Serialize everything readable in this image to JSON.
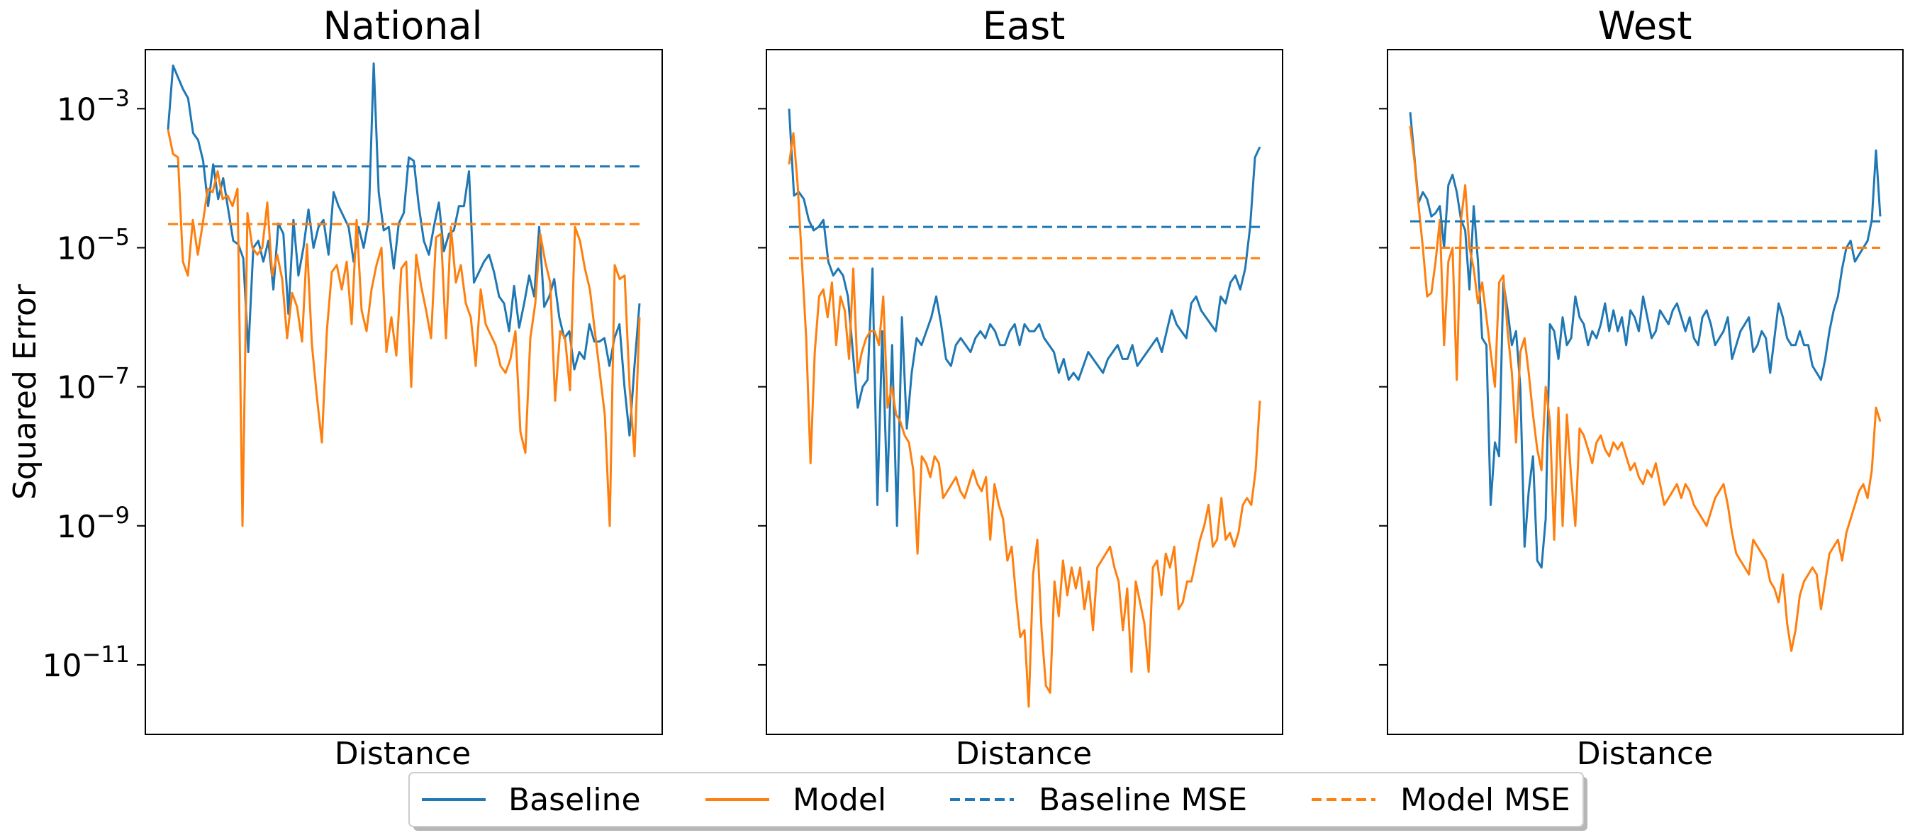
{
  "figure": {
    "ylabel": "Squared Error",
    "legend": {
      "placement": "bottom-center",
      "entries": [
        {
          "label": "Baseline",
          "color": "#1f77b4",
          "style": "solid"
        },
        {
          "label": "Model",
          "color": "#ff7f0e",
          "style": "solid"
        },
        {
          "label": "Baseline MSE",
          "color": "#1f77b4",
          "style": "dashed"
        },
        {
          "label": "Model MSE",
          "color": "#ff7f0e",
          "style": "dashed"
        }
      ]
    }
  },
  "chart_data": [
    {
      "type": "line",
      "title": "National",
      "xlabel": "Distance",
      "ylabel": "Squared Error",
      "yscale": "log",
      "ylim_exp": [
        -12,
        -2.15
      ],
      "yticks": [
        {
          "base": "10",
          "exp": "-3"
        },
        {
          "base": "10",
          "exp": "-5"
        },
        {
          "base": "10",
          "exp": "-7"
        },
        {
          "base": "10",
          "exp": "-9"
        },
        {
          "base": "10",
          "exp": "-11"
        }
      ],
      "x_ticks_shown": false,
      "series": [
        {
          "name": "Baseline",
          "color": "#1f77b4",
          "log10_values": [
            -3.3,
            -2.38,
            -2.55,
            -2.72,
            -2.85,
            -3.35,
            -3.45,
            -3.75,
            -4.4,
            -3.8,
            -4.3,
            -4.0,
            -4.45,
            -4.9,
            -4.95,
            -5.15,
            -6.5,
            -5.0,
            -4.9,
            -5.2,
            -4.9,
            -5.6,
            -4.65,
            -4.8,
            -5.95,
            -4.6,
            -5.4,
            -5.0,
            -4.45,
            -5.0,
            -4.7,
            -4.6,
            -5.1,
            -4.2,
            -4.4,
            -4.55,
            -4.7,
            -5.2,
            -4.7,
            -5.0,
            -4.6,
            -2.35,
            -4.2,
            -4.75,
            -4.7,
            -5.3,
            -4.65,
            -4.5,
            -3.7,
            -3.75,
            -4.4,
            -4.9,
            -5.1,
            -4.7,
            -4.35,
            -5.05,
            -4.8,
            -4.75,
            -4.4,
            -4.4,
            -3.9,
            -5.5,
            -5.35,
            -5.2,
            -5.1,
            -5.35,
            -5.7,
            -5.8,
            -6.2,
            -5.55,
            -6.15,
            -5.8,
            -5.4,
            -5.7,
            -4.7,
            -5.85,
            -5.7,
            -5.45,
            -6.0,
            -6.3,
            -6.2,
            -6.75,
            -6.5,
            -6.6,
            -6.1,
            -6.35,
            -6.35,
            -6.3,
            -6.7,
            -6.3,
            -6.1,
            -7.0,
            -7.7,
            -6.7,
            -5.8
          ]
        },
        {
          "name": "Model",
          "color": "#ff7f0e",
          "log10_values": [
            -3.3,
            -3.65,
            -3.7,
            -5.2,
            -5.4,
            -4.6,
            -5.1,
            -4.65,
            -4.15,
            -4.2,
            -3.9,
            -4.3,
            -4.25,
            -4.4,
            -4.15,
            -9.0,
            -4.5,
            -5.0,
            -5.1,
            -5.0,
            -4.35,
            -5.4,
            -5.1,
            -5.45,
            -6.3,
            -5.65,
            -5.85,
            -6.35,
            -4.95,
            -6.4,
            -7.15,
            -7.8,
            -6.2,
            -5.35,
            -5.25,
            -5.6,
            -5.2,
            -6.1,
            -4.6,
            -5.9,
            -6.2,
            -5.6,
            -5.25,
            -5.0,
            -6.5,
            -6.0,
            -6.55,
            -5.3,
            -5.2,
            -7.0,
            -5.1,
            -5.55,
            -5.9,
            -6.3,
            -4.85,
            -4.8,
            -6.3,
            -4.7,
            -5.5,
            -5.25,
            -5.8,
            -6.0,
            -6.7,
            -5.6,
            -6.1,
            -6.25,
            -6.4,
            -6.7,
            -6.8,
            -6.6,
            -6.2,
            -7.65,
            -7.95,
            -6.3,
            -5.8,
            -4.8,
            -5.2,
            -5.5,
            -7.2,
            -6.2,
            -6.3,
            -7.05,
            -4.7,
            -4.9,
            -5.3,
            -5.6,
            -6.2,
            -6.8,
            -7.4,
            -9.0,
            -5.25,
            -5.45,
            -5.4,
            -7.0,
            -8.0,
            -6.0
          ]
        },
        {
          "name": "Baseline MSE",
          "color": "#1f77b4",
          "dashed": true,
          "log10_values": [
            -3.83
          ]
        },
        {
          "name": "Model MSE",
          "color": "#ff7f0e",
          "dashed": true,
          "log10_values": [
            -4.66
          ]
        }
      ]
    },
    {
      "type": "line",
      "title": "East",
      "xlabel": "Distance",
      "yscale": "log",
      "ylim_exp": [
        -12,
        -2.15
      ],
      "yticks_labeled": false,
      "x_ticks_shown": false,
      "series": [
        {
          "name": "Baseline",
          "color": "#1f77b4",
          "log10_values": [
            -3.0,
            -4.25,
            -4.2,
            -4.3,
            -4.6,
            -4.75,
            -4.7,
            -4.6,
            -5.2,
            -5.4,
            -5.3,
            -5.4,
            -5.7,
            -6.5,
            -7.3,
            -7.0,
            -6.9,
            -5.3,
            -8.7,
            -6.2,
            -8.5,
            -6.4,
            -9.0,
            -6.0,
            -7.6,
            -6.8,
            -6.3,
            -6.4,
            -6.2,
            -6.0,
            -5.7,
            -6.1,
            -6.6,
            -6.7,
            -6.4,
            -6.3,
            -6.4,
            -6.5,
            -6.3,
            -6.2,
            -6.3,
            -6.1,
            -6.2,
            -6.4,
            -6.4,
            -6.2,
            -6.1,
            -6.4,
            -6.1,
            -6.2,
            -6.2,
            -6.1,
            -6.3,
            -6.4,
            -6.5,
            -6.8,
            -6.6,
            -6.9,
            -6.8,
            -6.9,
            -6.7,
            -6.5,
            -6.6,
            -6.7,
            -6.8,
            -6.6,
            -6.5,
            -6.4,
            -6.6,
            -6.6,
            -6.4,
            -6.7,
            -6.6,
            -6.5,
            -6.4,
            -6.3,
            -6.5,
            -6.2,
            -5.9,
            -6.1,
            -6.2,
            -6.3,
            -5.8,
            -5.7,
            -5.9,
            -6.0,
            -6.1,
            -6.2,
            -5.7,
            -5.8,
            -5.5,
            -5.4,
            -5.6,
            -5.3,
            -4.7,
            -3.7,
            -3.55
          ]
        },
        {
          "name": "Model",
          "color": "#ff7f0e",
          "log10_values": [
            -3.8,
            -3.35,
            -4.1,
            -5.2,
            -6.3,
            -8.1,
            -6.5,
            -5.7,
            -5.6,
            -6.0,
            -5.5,
            -6.4,
            -5.7,
            -5.9,
            -6.6,
            -5.3,
            -6.8,
            -6.5,
            -6.3,
            -6.2,
            -6.2,
            -6.4,
            -5.7,
            -7.3,
            -7.0,
            -7.4,
            -7.5,
            -7.7,
            -7.8,
            -8.2,
            -9.4,
            -8.0,
            -8.1,
            -8.3,
            -8.0,
            -8.1,
            -8.6,
            -8.5,
            -8.4,
            -8.3,
            -8.5,
            -8.6,
            -8.4,
            -8.2,
            -8.4,
            -8.5,
            -8.3,
            -9.2,
            -8.4,
            -8.7,
            -8.9,
            -9.5,
            -9.3,
            -10.0,
            -10.6,
            -10.5,
            -11.6,
            -9.7,
            -9.2,
            -10.5,
            -11.3,
            -11.4,
            -9.8,
            -10.3,
            -9.5,
            -10.0,
            -9.6,
            -9.9,
            -9.6,
            -10.2,
            -9.8,
            -10.5,
            -9.6,
            -9.5,
            -9.4,
            -9.3,
            -9.6,
            -9.8,
            -10.5,
            -9.9,
            -11.1,
            -9.8,
            -10.1,
            -10.4,
            -11.1,
            -9.6,
            -9.5,
            -10.0,
            -9.4,
            -9.6,
            -9.3,
            -10.2,
            -10.1,
            -9.8,
            -9.8,
            -9.5,
            -9.2,
            -9.0,
            -8.7,
            -9.3,
            -9.2,
            -8.6,
            -9.2,
            -9.1,
            -9.3,
            -9.1,
            -8.7,
            -8.6,
            -8.7,
            -8.2,
            -7.2
          ]
        },
        {
          "name": "Baseline MSE",
          "color": "#1f77b4",
          "dashed": true,
          "log10_values": [
            -4.7
          ]
        },
        {
          "name": "Model MSE",
          "color": "#ff7f0e",
          "dashed": true,
          "log10_values": [
            -5.15
          ]
        }
      ]
    },
    {
      "type": "line",
      "title": "West",
      "xlabel": "Distance",
      "yscale": "log",
      "ylim_exp": [
        -12,
        -2.15
      ],
      "yticks_labeled": false,
      "x_ticks_shown": false,
      "series": [
        {
          "name": "Baseline",
          "color": "#1f77b4",
          "log10_values": [
            -3.05,
            -3.7,
            -4.35,
            -4.2,
            -4.3,
            -4.55,
            -4.5,
            -4.4,
            -5.0,
            -4.1,
            -3.95,
            -4.2,
            -4.6,
            -4.75,
            -5.6,
            -4.4,
            -5.2,
            -6.3,
            -6.4,
            -8.7,
            -7.8,
            -8.0,
            -5.5,
            -5.9,
            -6.4,
            -6.2,
            -7.0,
            -9.3,
            -8.5,
            -8.0,
            -9.5,
            -9.6,
            -8.9,
            -6.1,
            -6.2,
            -6.6,
            -6.0,
            -6.4,
            -6.3,
            -5.7,
            -6.0,
            -6.1,
            -6.4,
            -6.2,
            -6.3,
            -6.1,
            -5.8,
            -6.2,
            -5.9,
            -6.2,
            -6.0,
            -6.4,
            -5.9,
            -6.0,
            -6.2,
            -5.7,
            -6.0,
            -6.3,
            -6.2,
            -5.9,
            -6.0,
            -6.1,
            -5.9,
            -5.8,
            -6.0,
            -6.2,
            -6.0,
            -6.3,
            -6.4,
            -6.0,
            -5.9,
            -6.1,
            -6.4,
            -6.3,
            -6.2,
            -6.0,
            -6.6,
            -6.4,
            -6.2,
            -6.1,
            -6.0,
            -6.5,
            -6.4,
            -6.2,
            -6.3,
            -6.8,
            -6.3,
            -5.8,
            -6.0,
            -6.3,
            -6.4,
            -6.4,
            -6.2,
            -6.4,
            -6.4,
            -6.7,
            -6.8,
            -6.9,
            -6.6,
            -6.2,
            -5.9,
            -5.7,
            -5.3,
            -5.0,
            -4.9,
            -5.2,
            -5.1,
            -5.0,
            -4.9,
            -4.6,
            -3.6,
            -4.55
          ]
        },
        {
          "name": "Model",
          "color": "#ff7f0e",
          "log10_values": [
            -3.25,
            -3.75,
            -4.4,
            -5.0,
            -5.7,
            -5.65,
            -5.2,
            -4.6,
            -6.4,
            -5.2,
            -5.0,
            -6.9,
            -4.6,
            -4.1,
            -5.0,
            -5.3,
            -5.8,
            -5.5,
            -6.0,
            -6.5,
            -7.0,
            -5.5,
            -5.4,
            -6.2,
            -6.8,
            -7.8,
            -6.5,
            -6.3,
            -6.8,
            -7.4,
            -7.9,
            -8.2,
            -7.0,
            -7.5,
            -9.2,
            -7.3,
            -9.0,
            -7.4,
            -8.3,
            -9.0,
            -7.6,
            -7.7,
            -7.9,
            -8.1,
            -7.8,
            -7.7,
            -7.9,
            -8.0,
            -7.8,
            -7.9,
            -7.8,
            -8.0,
            -8.2,
            -8.1,
            -8.3,
            -8.4,
            -8.2,
            -8.3,
            -8.1,
            -8.4,
            -8.7,
            -8.6,
            -8.5,
            -8.4,
            -8.6,
            -8.4,
            -8.5,
            -8.7,
            -8.8,
            -8.9,
            -9.0,
            -8.8,
            -8.6,
            -8.5,
            -8.4,
            -8.7,
            -9.1,
            -9.4,
            -9.5,
            -9.6,
            -9.7,
            -9.2,
            -9.3,
            -9.4,
            -9.5,
            -9.8,
            -9.9,
            -10.1,
            -9.7,
            -10.4,
            -10.8,
            -10.5,
            -10.0,
            -9.8,
            -9.7,
            -9.6,
            -9.7,
            -10.2,
            -9.8,
            -9.4,
            -9.3,
            -9.2,
            -9.5,
            -9.1,
            -8.9,
            -8.7,
            -8.5,
            -8.4,
            -8.6,
            -8.2,
            -7.3,
            -7.5
          ]
        },
        {
          "name": "Baseline MSE",
          "color": "#1f77b4",
          "dashed": true,
          "log10_values": [
            -4.62
          ]
        },
        {
          "name": "Model MSE",
          "color": "#ff7f0e",
          "dashed": true,
          "log10_values": [
            -5.0
          ]
        }
      ]
    }
  ]
}
